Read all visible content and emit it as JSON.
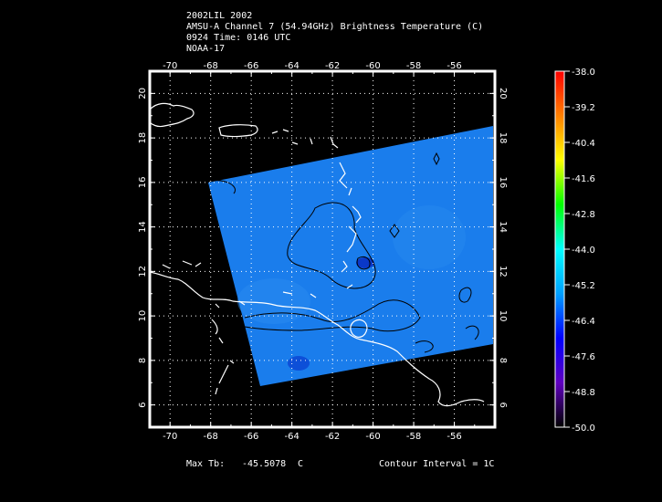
{
  "title": {
    "line1": "2002LIL 2002",
    "line2": "AMSU-A Channel 7 (54.94GHz) Brightness Temperature (C)",
    "line3": "0924 Time: 0146 UTC",
    "line4": "NOAA-17"
  },
  "footer": {
    "max_label": "Max Tb:",
    "max_value": "-45.5078",
    "max_unit": "C",
    "contour": "Contour Interval = 1C"
  },
  "map": {
    "lon_ticks": [
      "-70",
      "-68",
      "-66",
      "-64",
      "-62",
      "-60",
      "-58",
      "-56"
    ],
    "lat_ticks": [
      "20",
      "18",
      "16",
      "14",
      "12",
      "10",
      "8",
      "6"
    ],
    "lon_values": [
      -70,
      -68,
      -66,
      -64,
      -62,
      -60,
      -58,
      -56
    ],
    "lat_values": [
      20,
      18,
      16,
      14,
      12,
      10,
      8,
      6
    ],
    "lon_range": [
      -71,
      -54
    ],
    "lat_range": [
      5,
      21
    ],
    "swath_color": "#1a7dec",
    "coast_color": "#ffffff",
    "contour_color": "#000000"
  },
  "colorbar": {
    "labels": [
      "-38.0",
      "-39.2",
      "-40.4",
      "-41.6",
      "-42.8",
      "-44.0",
      "-45.2",
      "-46.4",
      "-47.6",
      "-48.8",
      "-50.0"
    ],
    "colors": [
      "#ff0000",
      "#ff8000",
      "#ffff00",
      "#00ff00",
      "#00ffff",
      "#00a0ff",
      "#0000ff",
      "#6000c0",
      "#000000"
    ]
  }
}
